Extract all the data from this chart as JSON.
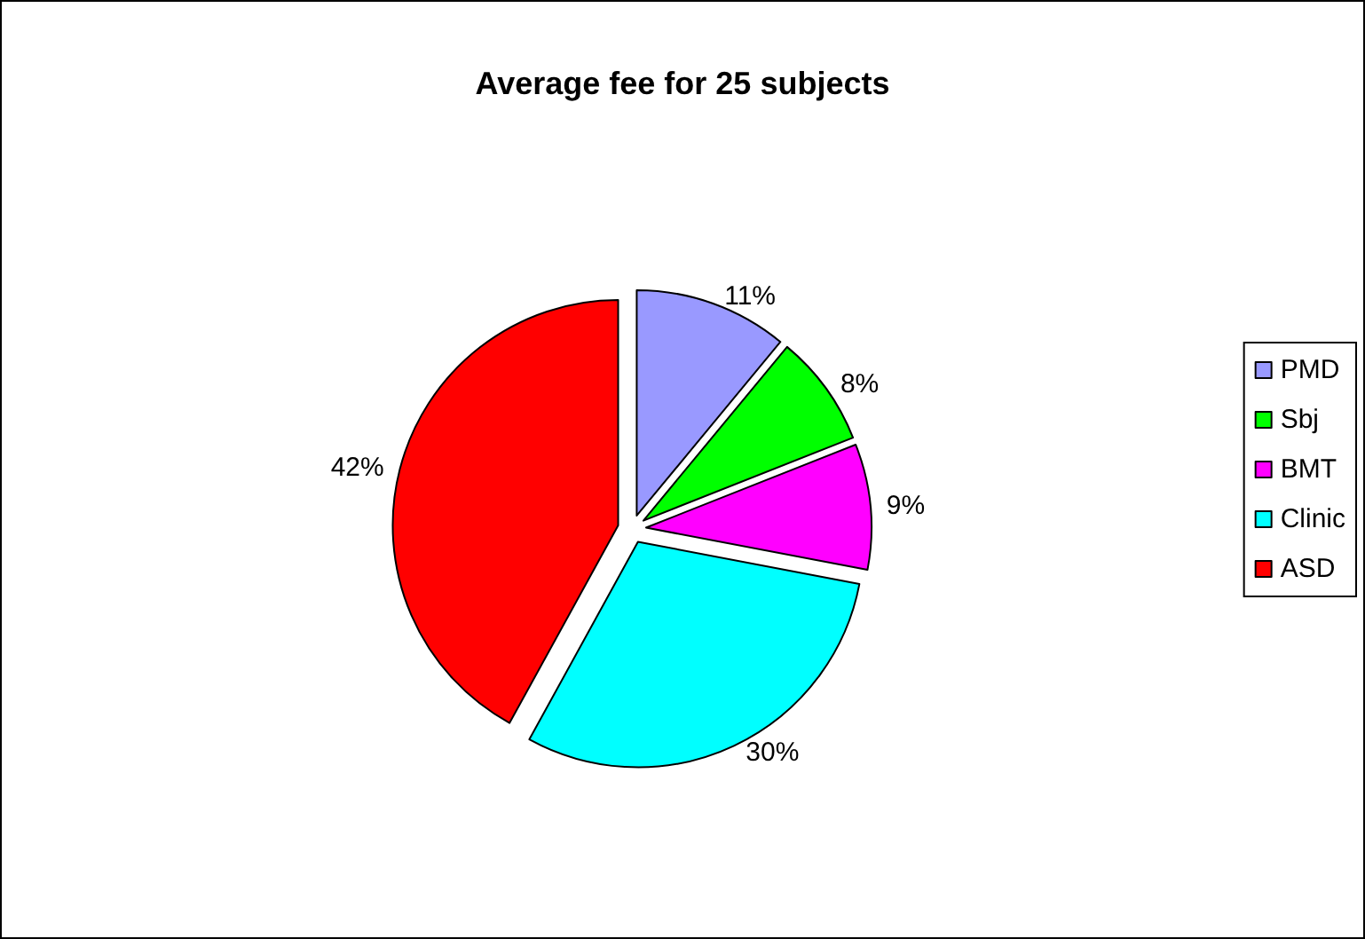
{
  "chart_data": {
    "type": "pie",
    "title": "Average fee for 25 subjects",
    "categories": [
      "PMD",
      "Sbj",
      "BMT",
      "Clinic",
      "ASD"
    ],
    "values": [
      11,
      8,
      9,
      30,
      42
    ],
    "value_labels": [
      "11%",
      "8%",
      "9%",
      "30%",
      "42%"
    ],
    "colors": [
      "#9999ff",
      "#00ff00",
      "#ff00ff",
      "#00ffff",
      "#ff0000"
    ],
    "legend": "right"
  }
}
